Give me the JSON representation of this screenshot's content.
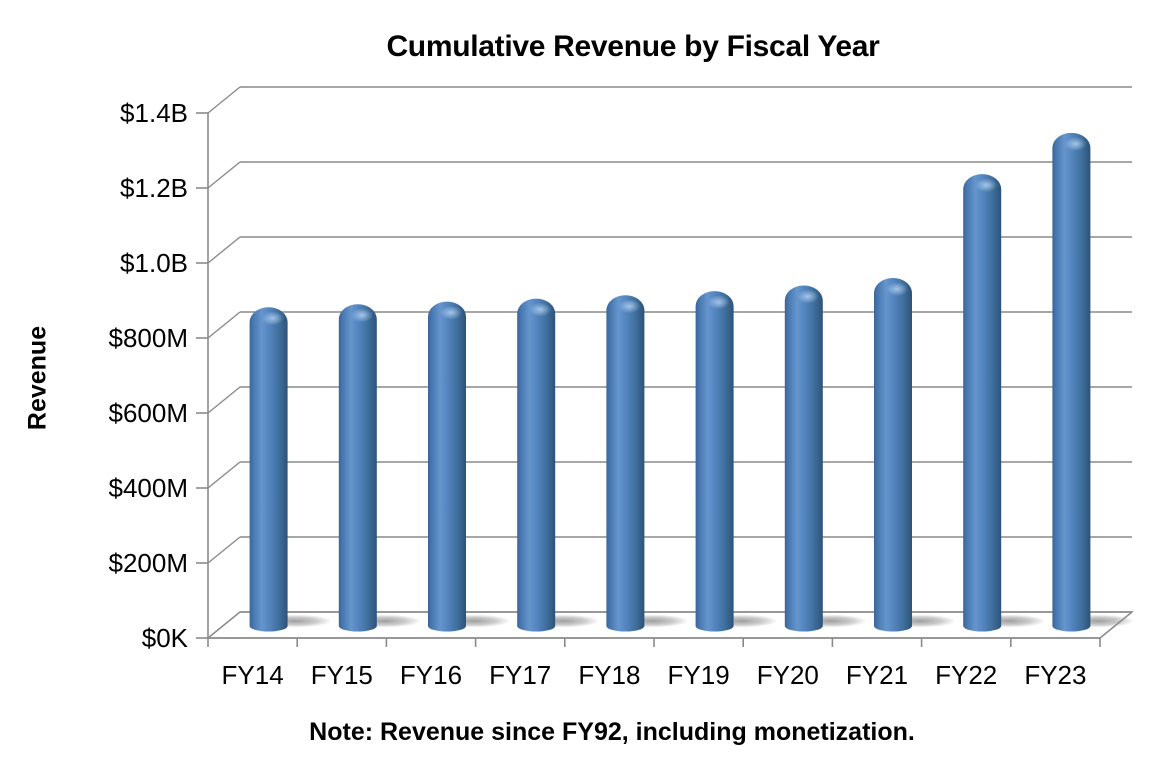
{
  "chart_data": {
    "type": "bar",
    "variant": "3d-cylinder",
    "title": "Cumulative Revenue by Fiscal Year",
    "ylabel": "Revenue",
    "xlabel": "",
    "categories": [
      "FY14",
      "FY15",
      "FY16",
      "FY17",
      "FY18",
      "FY19",
      "FY20",
      "FY21",
      "FY22",
      "FY23"
    ],
    "series": [
      {
        "name": "Cumulative Revenue",
        "values": [
          850,
          858,
          865,
          873,
          882,
          893,
          908,
          928,
          1205,
          1315
        ]
      }
    ],
    "values_unit": "USD millions (estimated from gridlines)",
    "ylim_millions": [
      0,
      1400
    ],
    "ytick_labels": [
      "$0K",
      "$200M",
      "$400M",
      "$600M",
      "$800M",
      "$1.0B",
      "$1.2B",
      "$1.4B"
    ],
    "grid": true,
    "legend": "none",
    "note": "Note: Revenue since FY92, including monetization."
  },
  "colors": {
    "background": "#ffffff",
    "text": "#000000",
    "axis": "#8a8a8a",
    "bar_base": "#4f81bd",
    "bar_gradient": [
      "#3a6499",
      "#4878b1",
      "#6695cc",
      "#5586c0",
      "#41719f",
      "#2d5379"
    ],
    "bar_highlight": "#aecdee",
    "shadow": "#8f8f8f"
  }
}
